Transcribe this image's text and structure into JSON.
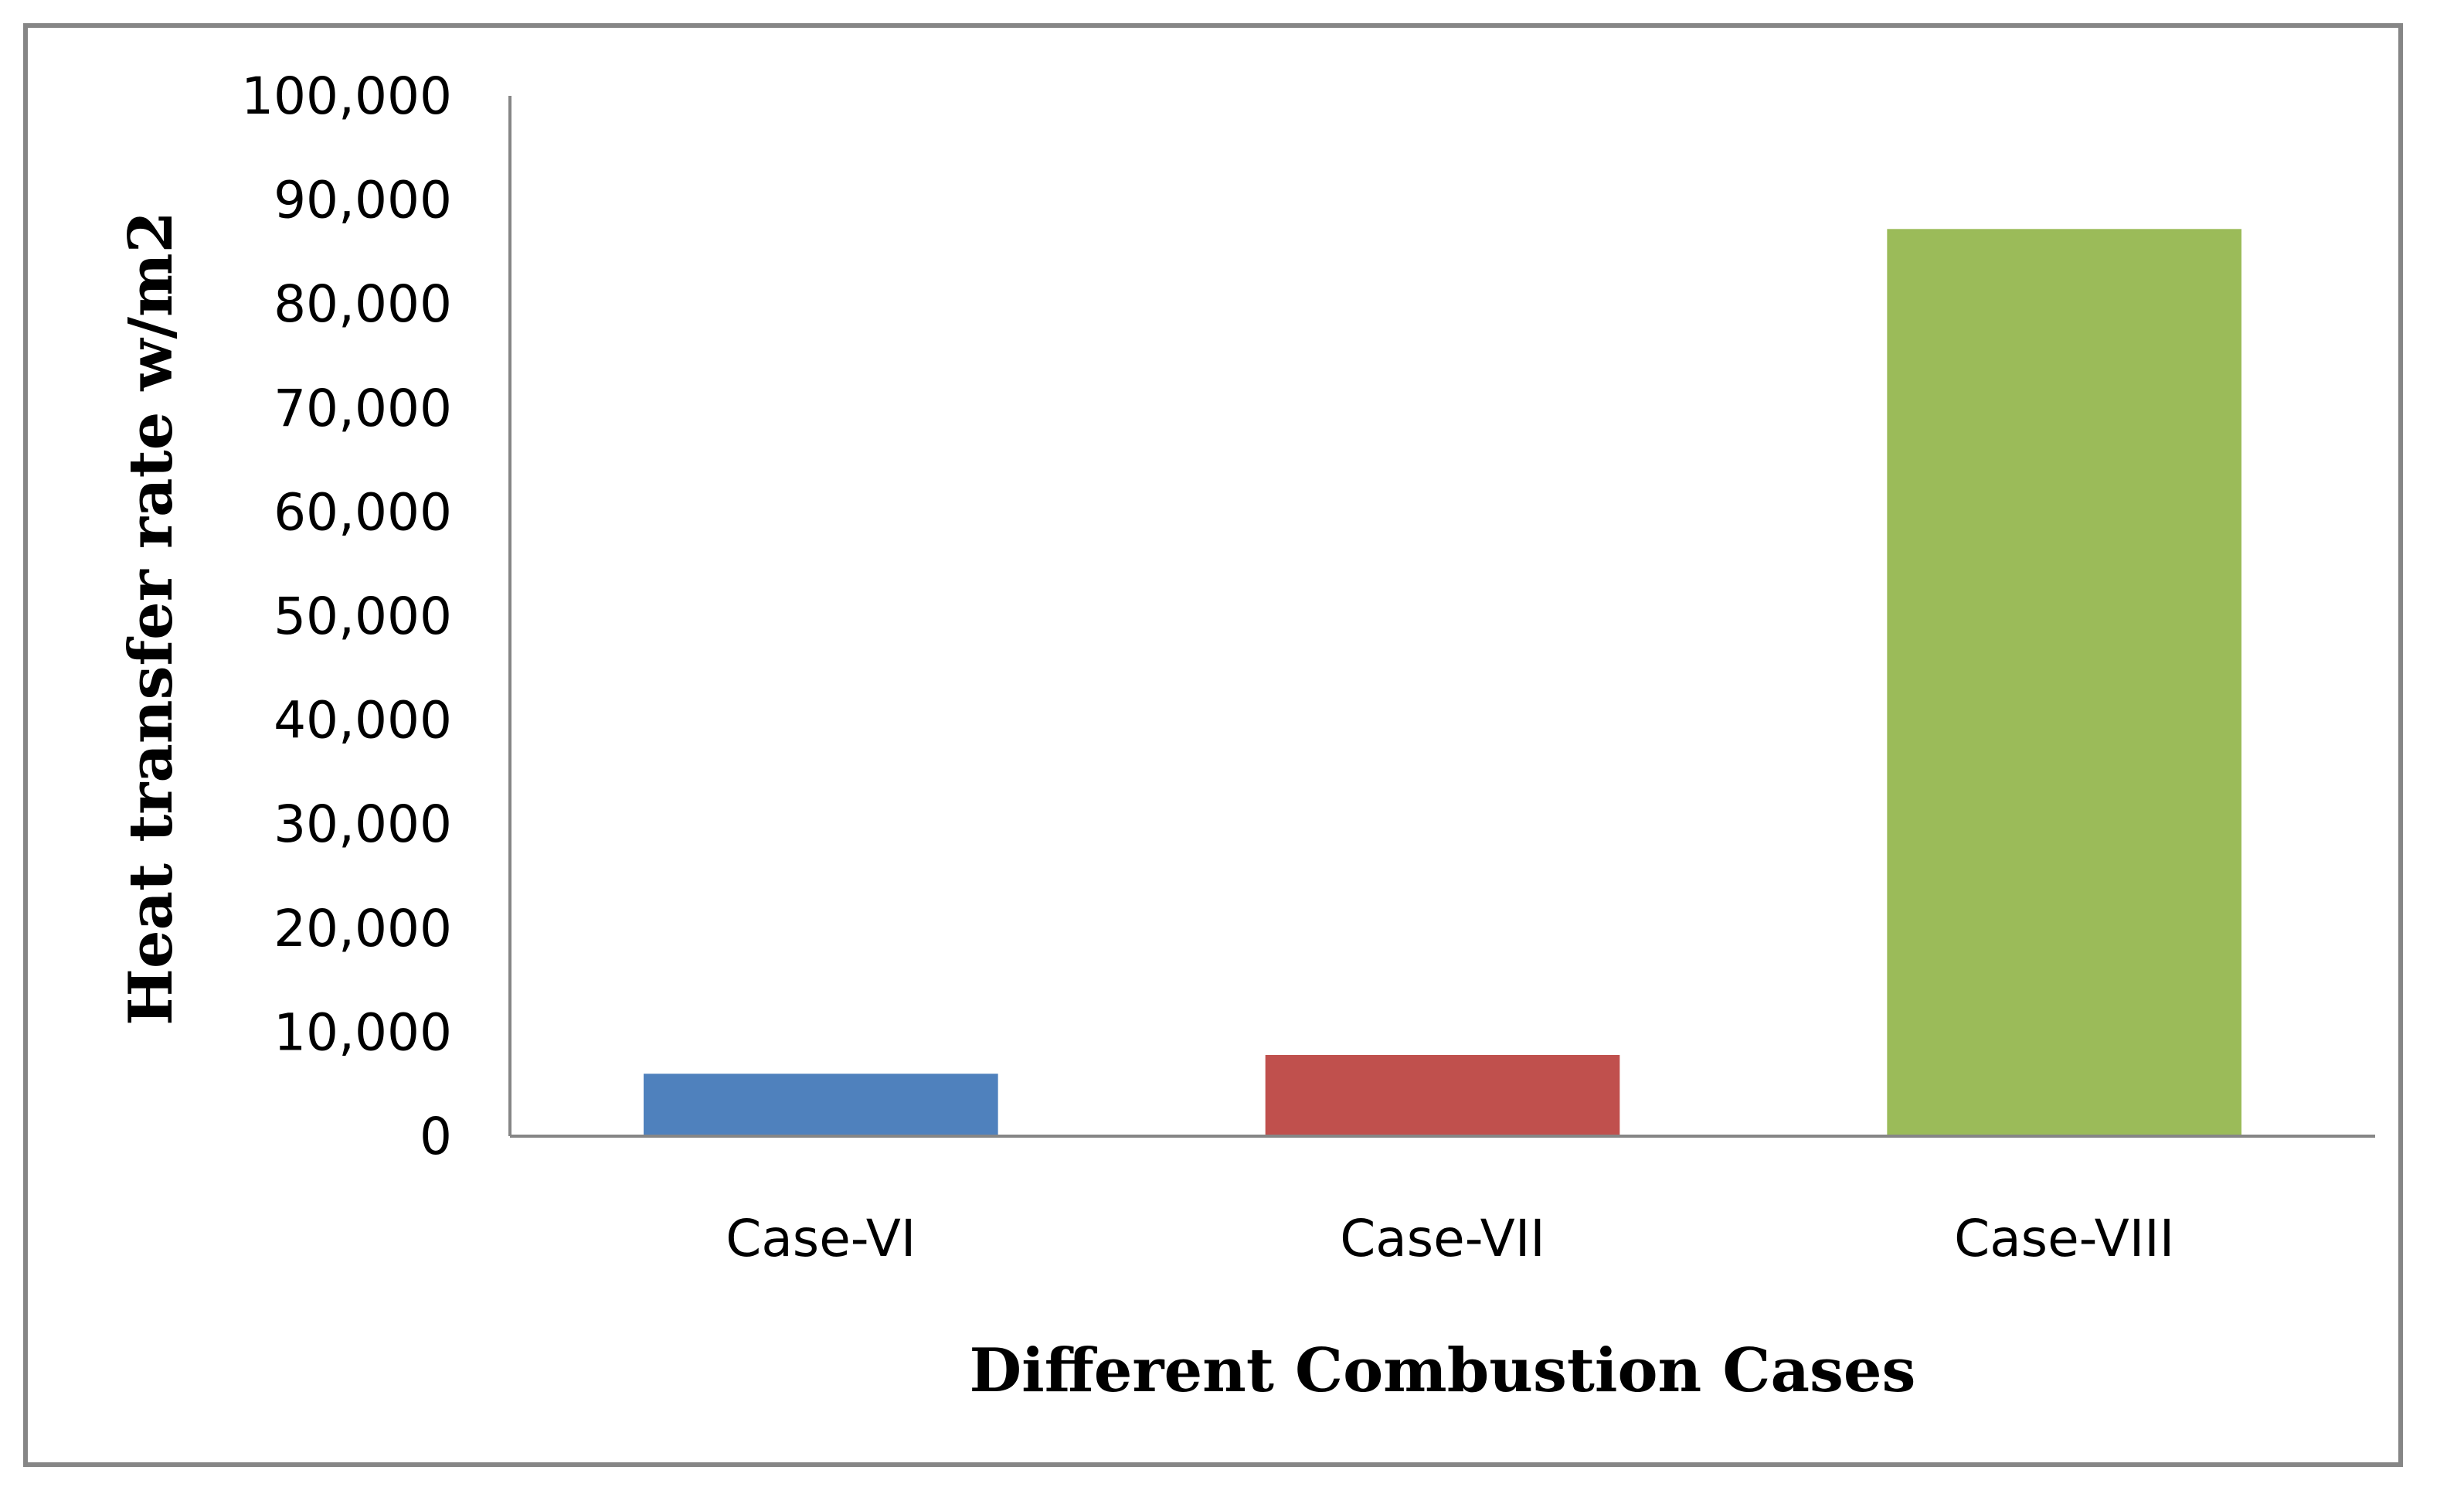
{
  "chart_data": {
    "type": "bar",
    "categories": [
      "Case-VI",
      "Case-VII",
      "Case-VIII"
    ],
    "values": [
      6000,
      7800,
      87200
    ],
    "colors": [
      "#4f81bd",
      "#c0504d",
      "#9bbb59"
    ],
    "title": "",
    "xlabel": "Different Combustion Cases",
    "ylabel": "Heat transfer rate w/m2",
    "ylim": [
      0,
      100000
    ],
    "yticks": [
      0,
      10000,
      20000,
      30000,
      40000,
      50000,
      60000,
      70000,
      80000,
      90000,
      100000
    ],
    "ytick_labels": [
      "0",
      "10,000",
      "20,000",
      "30,000",
      "40,000",
      "50,000",
      "60,000",
      "70,000",
      "80,000",
      "90,000",
      "100,000"
    ],
    "grid": false,
    "legend": "none"
  }
}
